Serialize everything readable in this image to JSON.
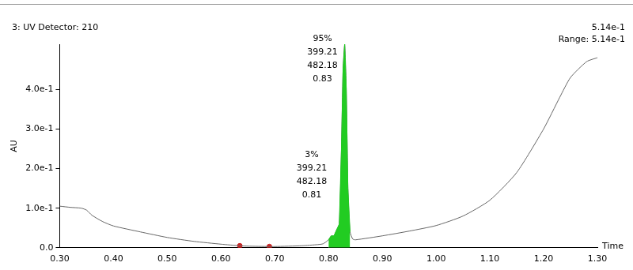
{
  "chart_data": {
    "type": "line",
    "title": "3: UV Detector: 210",
    "range_text": [
      "5.14e-1",
      "Range: 5.14e-1"
    ],
    "xlabel": "Time",
    "ylabel": "AU",
    "x": [
      0.3,
      0.32,
      0.34,
      0.35,
      0.36,
      0.38,
      0.4,
      0.45,
      0.5,
      0.55,
      0.6,
      0.635,
      0.65,
      0.69,
      0.7,
      0.75,
      0.78,
      0.79,
      0.8,
      0.805,
      0.81,
      0.815,
      0.82,
      0.824,
      0.827,
      0.83,
      0.833,
      0.836,
      0.84,
      0.845,
      0.85,
      0.9,
      0.95,
      1.0,
      1.05,
      1.1,
      1.15,
      1.2,
      1.23,
      1.25,
      1.28,
      1.3
    ],
    "series": [
      {
        "color": "#666666",
        "values": [
          0.105,
          0.102,
          0.1,
          0.095,
          0.082,
          0.066,
          0.055,
          0.04,
          0.026,
          0.016,
          0.009,
          0.005,
          0.004,
          0.003,
          0.003,
          0.005,
          0.008,
          0.01,
          0.02,
          0.03,
          0.03,
          0.045,
          0.06,
          0.25,
          0.45,
          0.514,
          0.4,
          0.15,
          0.04,
          0.022,
          0.02,
          0.03,
          0.042,
          0.056,
          0.08,
          0.12,
          0.19,
          0.3,
          0.38,
          0.43,
          0.47,
          0.48
        ]
      }
    ],
    "integrated": {
      "start": 0.8,
      "end": 0.84,
      "color": "#22cc22"
    },
    "minor_peaks": {
      "x": [
        0.635,
        0.69
      ],
      "color": "#cc2222"
    },
    "peaks": [
      {
        "x": 0.83,
        "labels": [
          "95%",
          "399.21",
          "482.18",
          "0.83"
        ]
      },
      {
        "x": 0.81,
        "labels": [
          "3%",
          "399.21",
          "482.18",
          "0.81"
        ]
      }
    ],
    "xlim": [
      0.3,
      1.3
    ],
    "xticks": [
      {
        "value": 0.3,
        "label": "0.30"
      },
      {
        "value": 0.4,
        "label": "0.40"
      },
      {
        "value": 0.5,
        "label": "0.50"
      },
      {
        "value": 0.6,
        "label": "0.60"
      },
      {
        "value": 0.7,
        "label": "0.70"
      },
      {
        "value": 0.8,
        "label": "0.80"
      },
      {
        "value": 0.9,
        "label": "0.90"
      },
      {
        "value": 1.0,
        "label": "1.00"
      },
      {
        "value": 1.1,
        "label": "1.10"
      },
      {
        "value": 1.2,
        "label": "1.20"
      },
      {
        "value": 1.3,
        "label": "1.30"
      }
    ],
    "ylim": [
      0,
      0.514
    ],
    "yticks": [
      {
        "value": 0,
        "label": "0.0"
      },
      {
        "value": 0.1,
        "label": "1.0e-1"
      },
      {
        "value": 0.2,
        "label": "2.0e-1"
      },
      {
        "value": 0.3,
        "label": "3.0e-1"
      },
      {
        "value": 0.4,
        "label": "4.0e-1"
      }
    ],
    "grid": false
  }
}
